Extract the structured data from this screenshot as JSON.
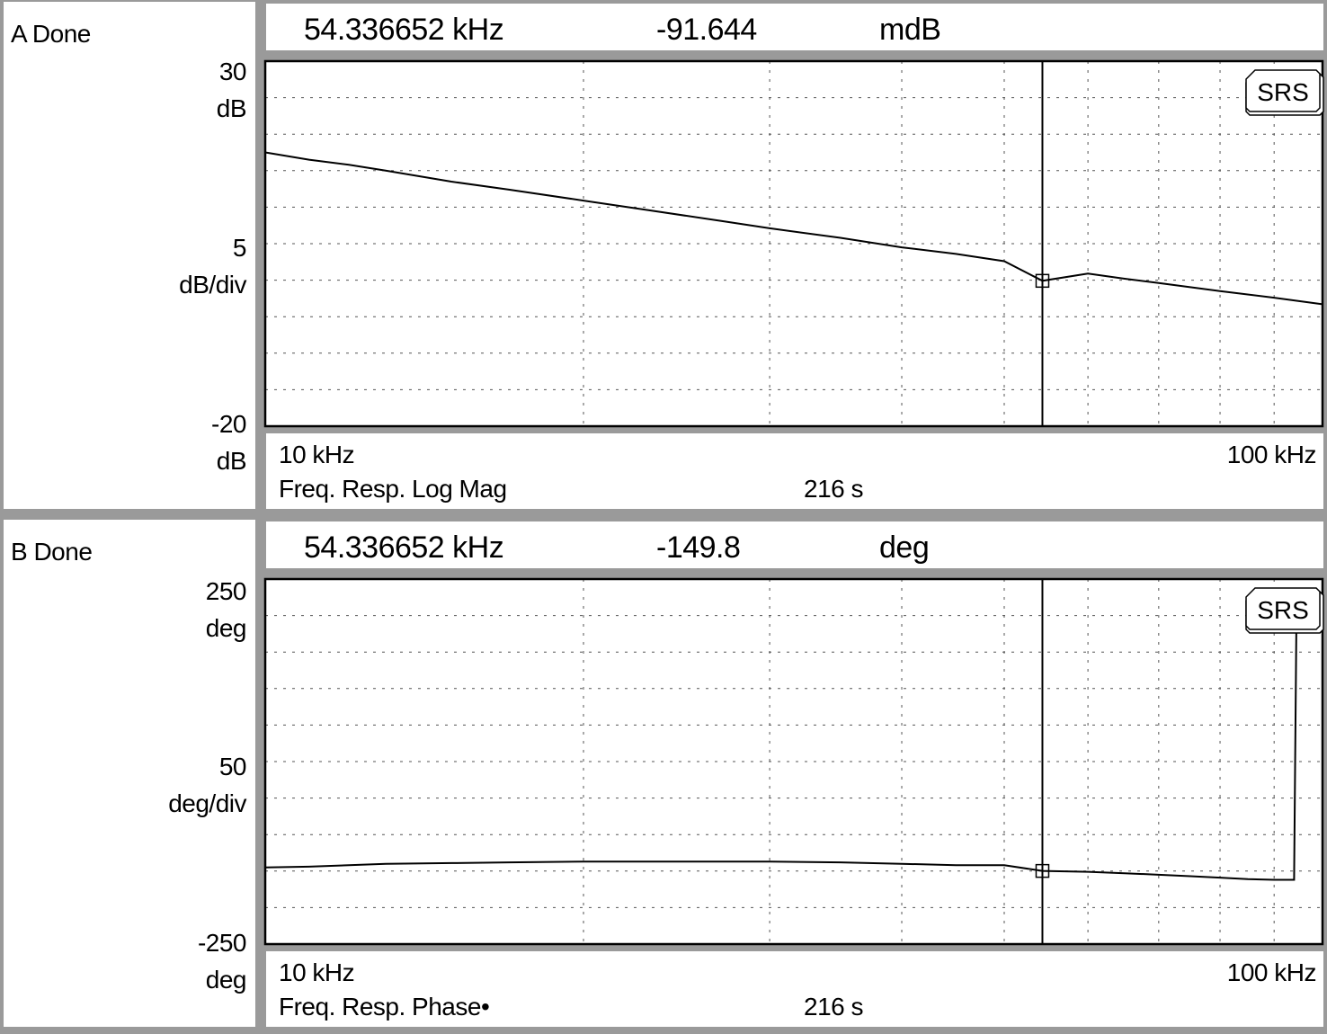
{
  "panes": [
    {
      "status": "A Done",
      "readout": {
        "frequency": "54.336652 kHz",
        "value": "-91.644",
        "unit": "mdB"
      },
      "y_labels": {
        "top_value": "30",
        "top_unit": "dB",
        "mid_value": "5",
        "mid_unit": "dB/div",
        "bottom_value": "-20",
        "bottom_unit": "dB"
      },
      "x_labels": {
        "start": "10 kHz",
        "end": "100 kHz"
      },
      "measurement": "Freq. Resp. Log Mag",
      "time": "216 s",
      "logo": "SRS"
    },
    {
      "status": "B Done",
      "readout": {
        "frequency": "54.336652 kHz",
        "value": "-149.8",
        "unit": "deg"
      },
      "y_labels": {
        "top_value": "250",
        "top_unit": "deg",
        "mid_value": "50",
        "mid_unit": "deg/div",
        "bottom_value": "-250",
        "bottom_unit": "deg"
      },
      "x_labels": {
        "start": "10 kHz",
        "end": "100 kHz"
      },
      "measurement": "Freq. Resp. Phase•",
      "time": "216 s",
      "logo": "SRS"
    }
  ],
  "chart_data": [
    {
      "type": "line",
      "title": "Freq. Resp. Log Mag",
      "xlabel": "",
      "ylabel": "",
      "xscale": "log",
      "xlim": [
        10000,
        100000
      ],
      "ylim": [
        -20,
        30
      ],
      "grid": true,
      "marker_x": 54336.652,
      "series": [
        {
          "x": [
            10000,
            11000,
            12000,
            13000,
            15000,
            17000,
            20000,
            23000,
            27000,
            30000,
            35000,
            40000,
            45000,
            50000,
            54336.652,
            60000,
            65000,
            70000,
            80000,
            90000,
            100000
          ],
          "y": [
            17.5,
            16.5,
            15.8,
            15.0,
            13.5,
            12.4,
            10.9,
            9.6,
            8.1,
            7.1,
            5.8,
            4.5,
            3.6,
            2.6,
            -0.09,
            0.9,
            0.2,
            -0.4,
            -1.5,
            -2.4,
            -3.3
          ]
        }
      ]
    },
    {
      "type": "line",
      "title": "Freq. Resp. Phase",
      "xlabel": "",
      "ylabel": "",
      "xscale": "log",
      "xlim": [
        10000,
        100000
      ],
      "ylim": [
        -250,
        250
      ],
      "grid": true,
      "marker_x": 54336.652,
      "series": [
        {
          "x": [
            10000,
            11000,
            12000,
            13000,
            15000,
            17000,
            20000,
            25000,
            30000,
            35000,
            40000,
            45000,
            50000,
            54336.652,
            60000,
            65000,
            70000,
            75000,
            80000,
            85000,
            90000,
            94000,
            94500,
            100000
          ],
          "y": [
            -145,
            -144,
            -142,
            -140,
            -139,
            -138,
            -137,
            -137,
            -137,
            -138,
            -140,
            -142,
            -142,
            -149.8,
            -151,
            -153,
            -155,
            -157,
            -159,
            -161,
            -162,
            -162,
            210,
            210
          ]
        }
      ]
    }
  ]
}
